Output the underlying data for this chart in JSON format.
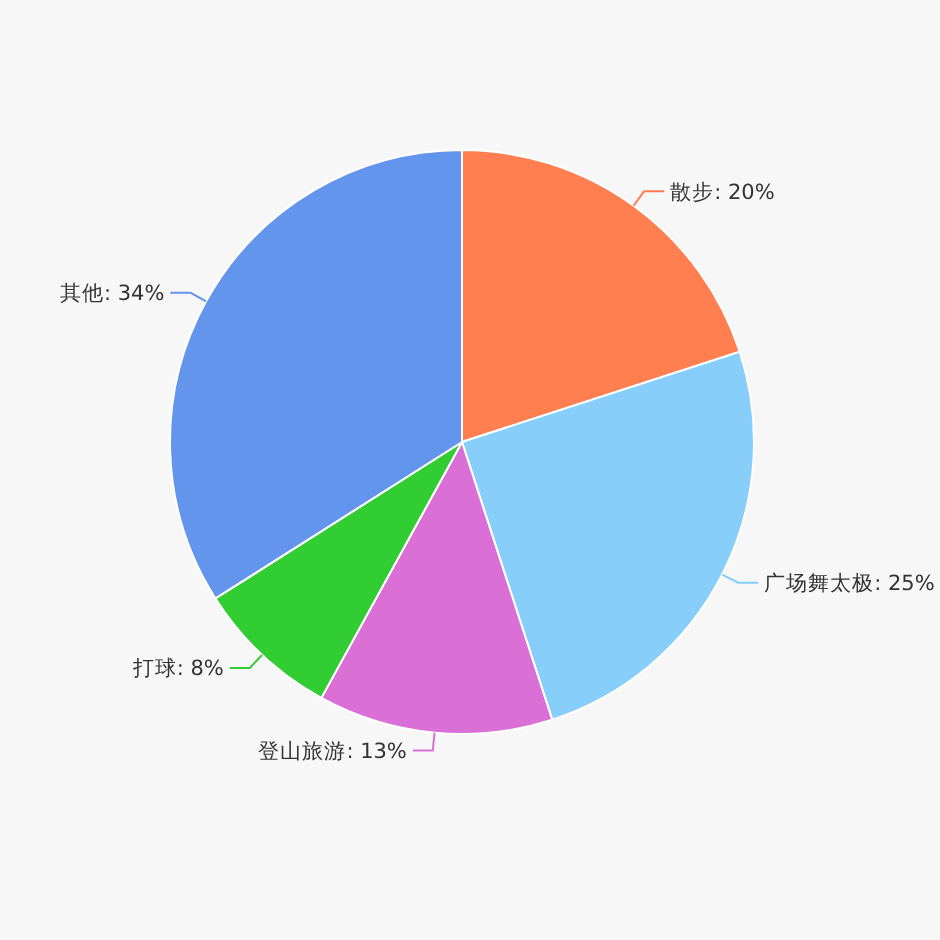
{
  "chart_data": {
    "type": "pie",
    "categories": [
      "散步",
      "广场舞太极",
      "登山旅游",
      "打球",
      "其他"
    ],
    "values": [
      20,
      25,
      13,
      8,
      34
    ],
    "value_labels": [
      "20%",
      "25%",
      "13%",
      "8%",
      "34%"
    ],
    "colors": [
      "#ff7f50",
      "#87cefa",
      "#da70d6",
      "#32cd32",
      "#6495ed"
    ]
  }
}
